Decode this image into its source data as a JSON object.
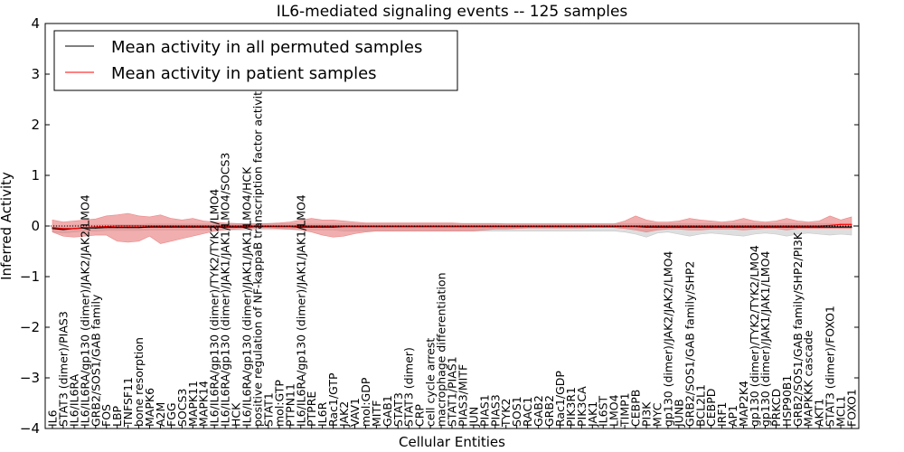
{
  "chart_data": {
    "type": "line",
    "title": "IL6-mediated signaling events -- 125 samples",
    "xlabel": "Cellular Entities",
    "ylabel": "Inferred Activity",
    "ylim": [
      -4,
      4
    ],
    "yticks": [
      "−4",
      "−3",
      "−2",
      "−1",
      "0",
      "1",
      "2",
      "3",
      "4"
    ],
    "ytick_values": [
      -4,
      -3,
      -2,
      -1,
      0,
      1,
      2,
      3,
      4
    ],
    "categories": [
      "IL6",
      "STAT3 (dimer)/PIAS3",
      "IL6/IL6RA",
      "IL6/IL6RA/gp130 (dimer)/JAK2/JAK2/LMO4",
      "GRB2/SOS1/GAB family",
      "FOS",
      "LBP",
      "TNFSF11",
      "bone resorption",
      "MAPK6",
      "A2M",
      "FGG",
      "SOCS3",
      "MAPK11",
      "MAPK14",
      "IL6/IL6RA/gp130 (dimer)/TYK2/TYK2/LMO4",
      "IL6/IL6RA/gp130 (dimer)/JAK1/JAK1/LMO4/SOCS3",
      "HCK",
      "IL6/IL6RA/gp130 (dimer)/JAK1/JAK1/LMO4/HCK",
      "positive regulation of NF-kappaB transcription factor activity",
      "STAT1",
      "mol:GTP",
      "PTPN11",
      "IL6/IL6RA/gp130 (dimer)/JAK1/JAK1/LMO4",
      "PTPRE",
      "IL6R",
      "Rac1/GTP",
      "JAK2",
      "VAV1",
      "mol:GDP",
      "MITF",
      "GAB1",
      "STAT3",
      "STAT3 (dimer)",
      "CRP",
      "cell cycle arrest",
      "macrophage differentiation",
      "STAT1/PIAS1",
      "PIAS3/MITF",
      "JUN",
      "PIAS1",
      "PIAS3",
      "TYK2",
      "SOS1",
      "RAC1",
      "GAB2",
      "GRB2",
      "Rac1/GDP",
      "PIK3R1",
      "PIK3CA",
      "JAK1",
      "IL6ST",
      "LMO4",
      "TIMP1",
      "CEBPB",
      "PI3K",
      "MYC",
      "gp130 (dimer)/JAK2/JAK2/LMO4",
      "JUNB",
      "GRB2/SOS1/GAB family/SHP2",
      "BCL2L1",
      "CEBPD",
      "IRF1",
      "AP1",
      "MAP2K4",
      "gp130 (dimer)/TYK2/TYK2/LMO4",
      "gp130 (dimer)/JAK1/JAK1/LMO4",
      "PRKCD",
      "HSP90B1",
      "GRB2/SOS1/GAB family/SHP2/PI3K",
      "MAPKKK cascade",
      "AKT1",
      "STAT3 (dimer)/FOXO1",
      "MCL1",
      "FOXO1"
    ],
    "series": [
      {
        "name": "Mean activity in all permuted samples",
        "color": "#000000",
        "values": [
          -0.05,
          -0.07,
          -0.05,
          -0.04,
          -0.04,
          -0.03,
          -0.03,
          -0.03,
          -0.03,
          -0.02,
          -0.02,
          -0.02,
          -0.02,
          -0.02,
          -0.02,
          -0.02,
          -0.02,
          -0.02,
          -0.02,
          -0.01,
          -0.01,
          -0.01,
          -0.01,
          -0.02,
          -0.02,
          -0.02,
          -0.02,
          -0.01,
          -0.01,
          -0.01,
          -0.01,
          -0.01,
          -0.01,
          -0.01,
          -0.01,
          -0.01,
          -0.01,
          -0.01,
          -0.01,
          -0.01,
          -0.01,
          -0.01,
          -0.01,
          -0.01,
          -0.01,
          -0.01,
          -0.01,
          -0.01,
          -0.01,
          -0.01,
          -0.01,
          -0.01,
          -0.01,
          -0.01,
          -0.01,
          -0.02,
          -0.02,
          -0.02,
          -0.02,
          -0.02,
          -0.02,
          -0.02,
          -0.02,
          -0.02,
          -0.02,
          -0.02,
          -0.02,
          -0.02,
          -0.02,
          -0.02,
          -0.02,
          -0.02,
          -0.02,
          -0.02,
          -0.02
        ],
        "lower": [
          -0.12,
          -0.14,
          -0.12,
          -0.1,
          -0.1,
          -0.09,
          -0.09,
          -0.09,
          -0.09,
          -0.08,
          -0.08,
          -0.08,
          -0.08,
          -0.08,
          -0.08,
          -0.08,
          -0.08,
          -0.08,
          -0.08,
          -0.07,
          -0.07,
          -0.07,
          -0.07,
          -0.08,
          -0.08,
          -0.08,
          -0.08,
          -0.1,
          -0.1,
          -0.1,
          -0.1,
          -0.1,
          -0.1,
          -0.1,
          -0.1,
          -0.1,
          -0.1,
          -0.1,
          -0.1,
          -0.1,
          -0.1,
          -0.1,
          -0.1,
          -0.1,
          -0.1,
          -0.1,
          -0.1,
          -0.1,
          -0.1,
          -0.1,
          -0.1,
          -0.1,
          -0.1,
          -0.12,
          -0.16,
          -0.22,
          -0.14,
          -0.12,
          -0.16,
          -0.2,
          -0.16,
          -0.14,
          -0.16,
          -0.18,
          -0.2,
          -0.16,
          -0.14,
          -0.16,
          -0.2,
          -0.16,
          -0.14,
          -0.16,
          -0.18,
          -0.16,
          -0.18
        ],
        "upper": [
          0.02,
          0.0,
          0.02,
          0.02,
          0.02,
          0.03,
          0.03,
          0.03,
          0.03,
          0.04,
          0.04,
          0.04,
          0.04,
          0.04,
          0.04,
          0.04,
          0.04,
          0.04,
          0.04,
          0.05,
          0.05,
          0.05,
          0.05,
          0.04,
          0.04,
          0.04,
          0.04,
          0.05,
          0.05,
          0.05,
          0.05,
          0.05,
          0.05,
          0.05,
          0.05,
          0.05,
          0.05,
          0.05,
          0.05,
          0.05,
          0.05,
          0.05,
          0.05,
          0.05,
          0.05,
          0.05,
          0.05,
          0.05,
          0.05,
          0.05,
          0.05,
          0.05,
          0.05,
          0.05,
          0.05,
          0.05,
          0.05,
          0.05,
          0.05,
          0.05,
          0.05,
          0.05,
          0.05,
          0.05,
          0.05,
          0.05,
          0.05,
          0.05,
          0.05,
          0.05,
          0.05,
          0.05,
          0.05,
          0.05,
          0.05
        ]
      },
      {
        "name": "Mean activity in patient samples",
        "color": "#ff0000",
        "values": [
          -0.03,
          -0.05,
          -0.05,
          -0.03,
          -0.02,
          -0.01,
          0.0,
          0.0,
          0.0,
          0.0,
          0.0,
          0.0,
          0.0,
          0.0,
          0.0,
          0.0,
          0.0,
          0.0,
          0.0,
          0.0,
          0.0,
          0.0,
          0.0,
          0.0,
          0.0,
          0.0,
          0.0,
          0.0,
          0.0,
          0.0,
          0.0,
          0.0,
          0.0,
          0.0,
          0.0,
          0.0,
          0.0,
          0.0,
          0.0,
          0.0,
          0.0,
          0.0,
          0.0,
          0.0,
          0.0,
          0.0,
          0.0,
          0.0,
          0.0,
          0.0,
          0.0,
          0.0,
          0.0,
          0.0,
          0.0,
          0.0,
          0.0,
          0.0,
          0.0,
          0.0,
          0.0,
          0.0,
          0.0,
          0.0,
          0.0,
          0.0,
          0.0,
          0.0,
          0.0,
          0.0,
          0.0,
          0.0,
          0.01,
          0.03,
          0.03
        ],
        "lower": [
          -0.12,
          -0.2,
          -0.22,
          -0.2,
          -0.18,
          -0.18,
          -0.3,
          -0.32,
          -0.3,
          -0.2,
          -0.35,
          -0.3,
          -0.25,
          -0.2,
          -0.15,
          -0.1,
          -0.08,
          -0.06,
          -0.05,
          -0.04,
          -0.04,
          -0.05,
          -0.06,
          -0.08,
          -0.12,
          -0.18,
          -0.22,
          -0.2,
          -0.15,
          -0.12,
          -0.1,
          -0.1,
          -0.1,
          -0.1,
          -0.1,
          -0.1,
          -0.1,
          -0.1,
          -0.1,
          -0.1,
          -0.08,
          -0.06,
          -0.06,
          -0.05,
          -0.04,
          -0.04,
          -0.04,
          -0.04,
          -0.04,
          -0.04,
          -0.03,
          -0.03,
          -0.03,
          -0.05,
          -0.08,
          -0.12,
          -0.08,
          -0.06,
          -0.06,
          -0.08,
          -0.08,
          -0.06,
          -0.06,
          -0.06,
          -0.08,
          -0.06,
          -0.05,
          -0.05,
          -0.08,
          -0.05,
          -0.05,
          -0.05,
          -0.05,
          -0.05,
          -0.05
        ],
        "upper": [
          0.12,
          0.08,
          0.1,
          0.12,
          0.14,
          0.2,
          0.22,
          0.25,
          0.2,
          0.18,
          0.22,
          0.15,
          0.12,
          0.15,
          0.1,
          0.08,
          0.06,
          0.05,
          0.05,
          0.04,
          0.05,
          0.06,
          0.08,
          0.12,
          0.15,
          0.12,
          0.12,
          0.1,
          0.08,
          0.06,
          0.06,
          0.06,
          0.06,
          0.06,
          0.06,
          0.06,
          0.06,
          0.06,
          0.05,
          0.05,
          0.05,
          0.05,
          0.04,
          0.04,
          0.04,
          0.04,
          0.04,
          0.04,
          0.04,
          0.04,
          0.04,
          0.04,
          0.04,
          0.1,
          0.2,
          0.12,
          0.08,
          0.08,
          0.1,
          0.15,
          0.12,
          0.1,
          0.08,
          0.1,
          0.15,
          0.1,
          0.08,
          0.1,
          0.15,
          0.1,
          0.08,
          0.1,
          0.2,
          0.12,
          0.18
        ]
      }
    ],
    "legend_position": "top-left",
    "colors": {
      "permuted_band": "#bdbdbd",
      "patient_band": "#e87878",
      "axes": "#000000",
      "background": "#ffffff"
    }
  }
}
